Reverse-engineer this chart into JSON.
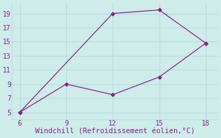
{
  "line1_x": [
    6,
    12,
    15,
    18
  ],
  "line1_y": [
    5,
    19,
    19.5,
    14.8
  ],
  "line2_x": [
    6,
    9,
    12,
    15,
    18
  ],
  "line2_y": [
    5,
    9,
    7.5,
    10.0,
    14.8
  ],
  "xlabel": "Windchill (Refroidissement éolien,°C)",
  "xlim": [
    5.5,
    18.8
  ],
  "ylim": [
    4.0,
    20.5
  ],
  "xticks": [
    6,
    9,
    12,
    15,
    18
  ],
  "yticks": [
    5,
    7,
    9,
    11,
    13,
    15,
    17,
    19
  ],
  "line_color": "#882288",
  "marker": "D",
  "marker_size": 2.5,
  "bg_color": "#ceecea",
  "grid_color": "#b8dedd",
  "xlabel_color": "#882288",
  "xlabel_fontsize": 7.5,
  "tick_color": "#882288",
  "tick_fontsize": 7
}
